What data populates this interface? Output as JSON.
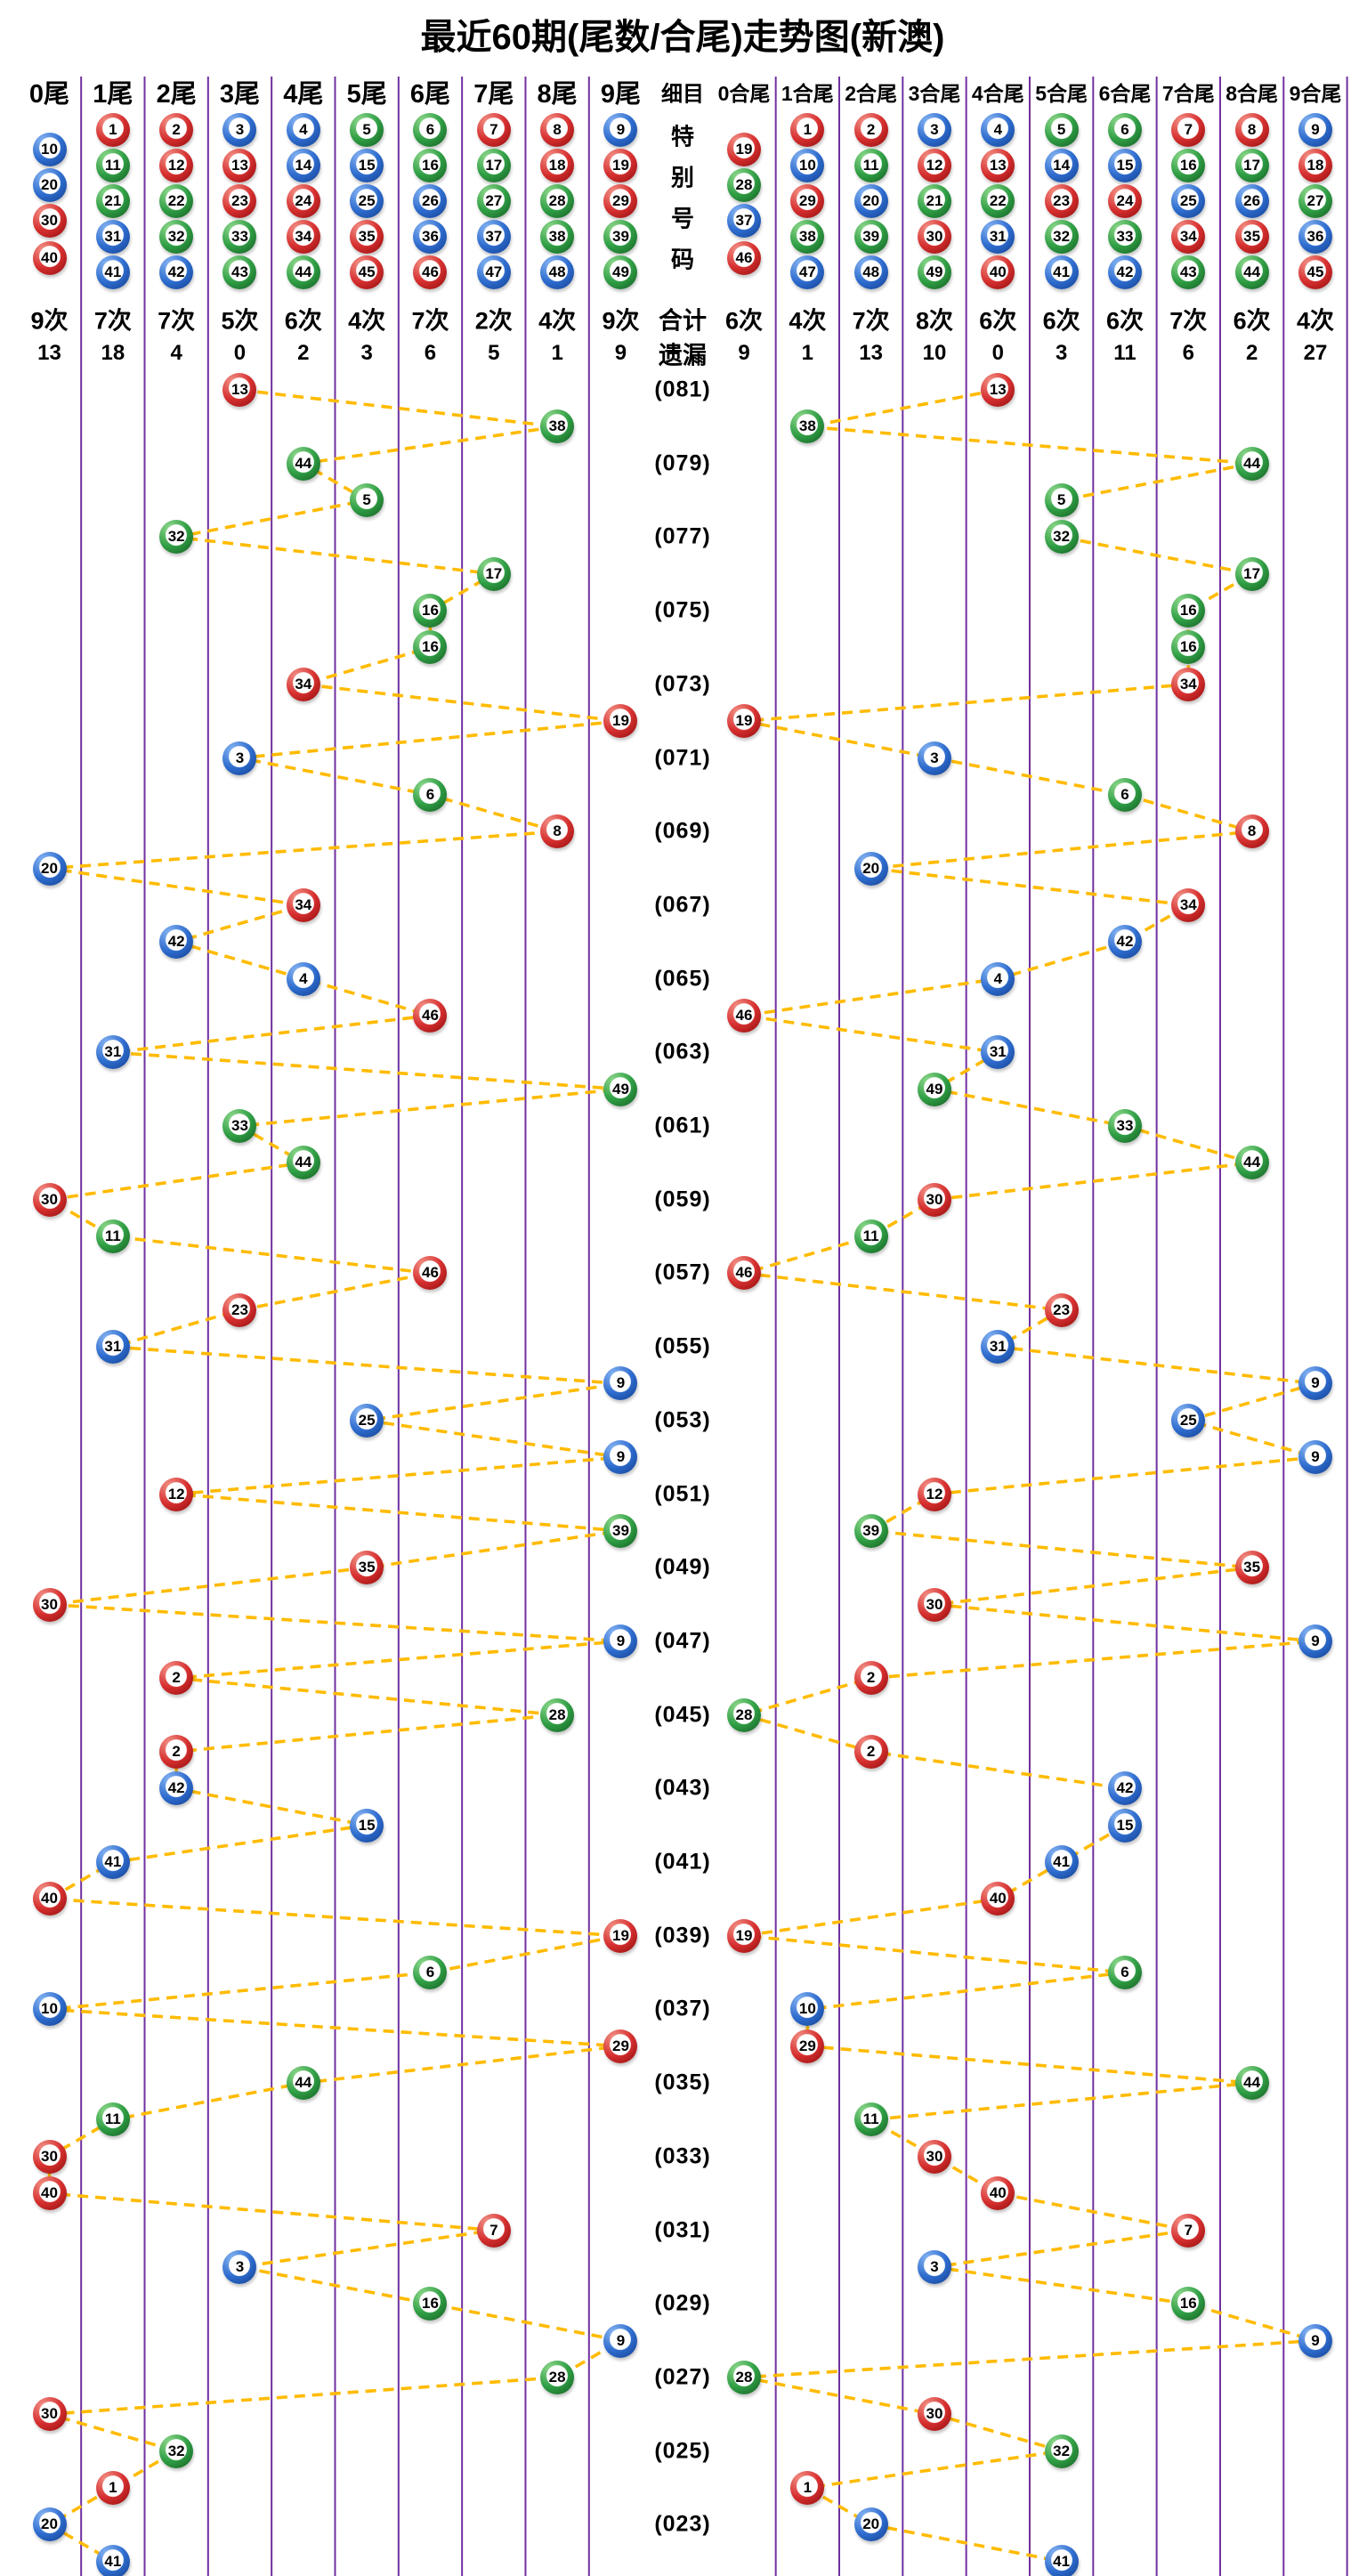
{
  "chart_data": {
    "type": "scatter",
    "title": "最近60期(尾数/合尾)走势图(新澳)",
    "left_headers": [
      "0尾",
      "1尾",
      "2尾",
      "3尾",
      "4尾",
      "5尾",
      "6尾",
      "7尾",
      "8尾",
      "9尾"
    ],
    "middle_header": "细目",
    "right_headers": [
      "0合尾",
      "1合尾",
      "2合尾",
      "3合尾",
      "4合尾",
      "5合尾",
      "6合尾",
      "7合尾",
      "8合尾",
      "9合尾"
    ],
    "special_column_label": "特别号码",
    "totals_row_label": "合计",
    "misses_row_label": "遗漏",
    "count_unit": "次",
    "legend_left_numbers": [
      [
        10,
        20,
        30,
        40
      ],
      [
        1,
        11,
        21,
        31,
        41
      ],
      [
        2,
        12,
        22,
        32,
        42
      ],
      [
        3,
        13,
        23,
        33,
        43
      ],
      [
        4,
        14,
        24,
        34,
        44
      ],
      [
        5,
        15,
        25,
        35,
        45
      ],
      [
        6,
        16,
        26,
        36,
        46
      ],
      [
        7,
        17,
        27,
        37,
        47
      ],
      [
        8,
        18,
        28,
        38,
        48
      ],
      [
        9,
        19,
        29,
        39,
        49
      ]
    ],
    "legend_right_numbers": [
      [
        19,
        28,
        37,
        46
      ],
      [
        1,
        10,
        29,
        38,
        47
      ],
      [
        2,
        11,
        20,
        39,
        48
      ],
      [
        3,
        12,
        21,
        30,
        49
      ],
      [
        4,
        13,
        22,
        31,
        40
      ],
      [
        5,
        14,
        23,
        32,
        41
      ],
      [
        6,
        15,
        24,
        33,
        42
      ],
      [
        7,
        16,
        25,
        34,
        43
      ],
      [
        8,
        17,
        26,
        35,
        44
      ],
      [
        9,
        18,
        27,
        36,
        45
      ]
    ],
    "left_counts": [
      9,
      7,
      7,
      5,
      6,
      4,
      7,
      2,
      4,
      9
    ],
    "right_counts": [
      6,
      4,
      7,
      8,
      6,
      6,
      6,
      7,
      6,
      4
    ],
    "left_misses": [
      13,
      18,
      4,
      0,
      2,
      3,
      6,
      5,
      1,
      9
    ],
    "right_misses": [
      9,
      1,
      13,
      10,
      0,
      3,
      11,
      6,
      2,
      27
    ],
    "period_labels": [
      "(081)",
      "(079)",
      "(077)",
      "(075)",
      "(073)",
      "(071)",
      "(069)",
      "(067)",
      "(065)",
      "(063)",
      "(061)",
      "(059)",
      "(057)",
      "(055)",
      "(053)",
      "(051)",
      "(049)",
      "(047)",
      "(045)",
      "(043)",
      "(041)",
      "(039)",
      "(037)",
      "(035)",
      "(033)",
      "(031)",
      "(029)",
      "(027)",
      "(025)",
      "(023)"
    ],
    "draws": [
      13,
      38,
      44,
      5,
      32,
      17,
      16,
      16,
      34,
      19,
      3,
      6,
      8,
      20,
      34,
      42,
      4,
      46,
      31,
      49,
      33,
      44,
      30,
      11,
      46,
      23,
      31,
      9,
      25,
      9,
      12,
      39,
      35,
      30,
      9,
      2,
      28,
      2,
      42,
      15,
      41,
      40,
      19,
      6,
      10,
      29,
      44,
      11,
      30,
      40,
      7,
      3,
      16,
      9,
      28,
      30,
      32,
      1,
      20,
      41
    ],
    "draw_tails": [
      3,
      8,
      4,
      5,
      2,
      7,
      6,
      6,
      4,
      9,
      3,
      6,
      8,
      0,
      4,
      2,
      4,
      6,
      1,
      9,
      3,
      4,
      0,
      1,
      6,
      3,
      1,
      9,
      5,
      9,
      2,
      9,
      5,
      0,
      9,
      2,
      8,
      2,
      2,
      5,
      1,
      0,
      9,
      6,
      0,
      9,
      4,
      1,
      0,
      0,
      7,
      3,
      6,
      9,
      8,
      0,
      2,
      1,
      0,
      1
    ],
    "draw_sum_tails": [
      4,
      1,
      8,
      5,
      5,
      8,
      7,
      7,
      7,
      0,
      3,
      6,
      8,
      2,
      7,
      6,
      4,
      0,
      4,
      3,
      6,
      8,
      3,
      2,
      0,
      5,
      4,
      9,
      7,
      9,
      3,
      2,
      8,
      3,
      9,
      2,
      0,
      2,
      6,
      6,
      5,
      4,
      0,
      6,
      1,
      1,
      8,
      2,
      3,
      4,
      7,
      3,
      7,
      9,
      0,
      3,
      5,
      1,
      2,
      5
    ],
    "ball_color_groups": {
      "red": [
        1,
        2,
        7,
        8,
        12,
        13,
        18,
        19,
        23,
        24,
        29,
        30,
        34,
        35,
        40,
        45,
        46
      ],
      "blue": [
        3,
        4,
        9,
        10,
        14,
        15,
        20,
        25,
        26,
        31,
        36,
        37,
        41,
        42,
        47,
        48
      ],
      "green": [
        5,
        6,
        11,
        16,
        17,
        21,
        22,
        27,
        28,
        32,
        33,
        38,
        39,
        43,
        44,
        49
      ]
    },
    "colors": {
      "red_ball": "#D62F2F",
      "blue_ball": "#2E6CCE",
      "green_ball": "#2F9E44",
      "grid_line": "#7030A0",
      "connector": "#FFBB00",
      "text": "#000000",
      "background": "#FFFFFF"
    }
  }
}
